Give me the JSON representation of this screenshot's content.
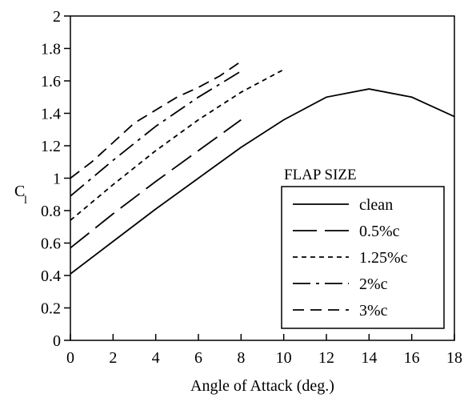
{
  "chart_data": {
    "type": "line",
    "xlabel": "Angle of Attack (deg.)",
    "ylabel": "C",
    "ylabel_subscript": "l",
    "xlim": [
      0,
      18
    ],
    "ylim": [
      0,
      2
    ],
    "x_ticks": [
      "0",
      "2",
      "4",
      "6",
      "8",
      "10",
      "12",
      "14",
      "16",
      "18"
    ],
    "y_ticks": [
      "0",
      "0.2",
      "0.4",
      "0.6",
      "0.8",
      "1",
      "1.2",
      "1.4",
      "1.6",
      "1.8",
      "2"
    ],
    "grid": false,
    "legend_position": "lower-right",
    "legend_title": "FLAP SIZE",
    "series": [
      {
        "name": "clean",
        "dash": "solid",
        "x": [
          0,
          2,
          4,
          6,
          8,
          10,
          12,
          14,
          16,
          18
        ],
        "y": [
          0.41,
          0.61,
          0.81,
          1.0,
          1.19,
          1.36,
          1.5,
          1.55,
          1.5,
          1.38
        ]
      },
      {
        "name": "0.5%c",
        "dash": "long-dash",
        "x": [
          0,
          2,
          4,
          6,
          8
        ],
        "y": [
          0.57,
          0.78,
          0.98,
          1.17,
          1.36
        ]
      },
      {
        "name": "1.25%c",
        "dash": "short-dash",
        "x": [
          0,
          2,
          4,
          6,
          8,
          10
        ],
        "y": [
          0.74,
          0.96,
          1.17,
          1.36,
          1.53,
          1.67
        ]
      },
      {
        "name": "2%c",
        "dash": "dash-dot",
        "x": [
          0,
          2,
          4,
          6,
          8
        ],
        "y": [
          0.89,
          1.11,
          1.32,
          1.5,
          1.66
        ]
      },
      {
        "name": "3%c",
        "dash": "medium-dash",
        "x": [
          0,
          1,
          2,
          3,
          4,
          5,
          6,
          7,
          8
        ],
        "y": [
          1.0,
          1.1,
          1.22,
          1.34,
          1.42,
          1.5,
          1.56,
          1.63,
          1.72
        ]
      }
    ]
  }
}
